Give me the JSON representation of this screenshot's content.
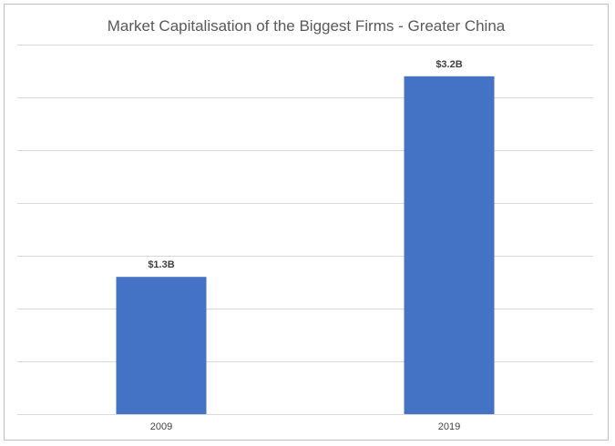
{
  "chart_data": {
    "type": "bar",
    "title": "Market Capitalisation of the Biggest Firms - Greater China",
    "categories": [
      "2009",
      "2019"
    ],
    "values": [
      1.3,
      3.2
    ],
    "data_labels": [
      "$1.3B",
      "$3.2B"
    ],
    "xlabel": "",
    "ylabel": "",
    "ylim": [
      0,
      3.5
    ],
    "grid": true,
    "legend": "none",
    "bar_color": "#4472C4"
  }
}
